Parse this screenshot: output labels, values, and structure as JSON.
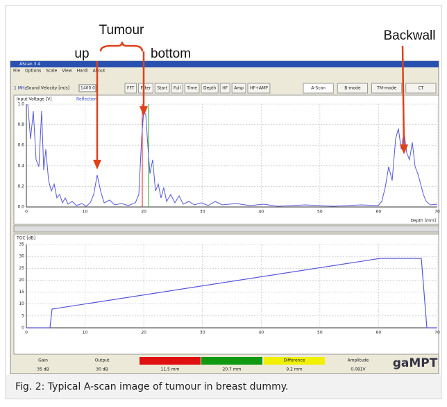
{
  "annotations": {
    "tumour": "Tumour",
    "up": "up",
    "bottom": "bottom",
    "backwall": "Backwall"
  },
  "window": {
    "title": "AScan 3.4",
    "menu": [
      "File",
      "Options",
      "Scale",
      "View",
      "Hardi",
      "About"
    ],
    "frequency": "1 MHz",
    "velocity_label": "Sound Velocity [m/s]",
    "velocity": "1400.0",
    "buttons": [
      "FFT",
      "Filter",
      "Start",
      "Full",
      "Time",
      "Depth",
      "HF",
      "Amp",
      "HF+AMP"
    ],
    "modes": [
      "A-Scan",
      "B-mode",
      "TM-mode",
      "CT"
    ]
  },
  "top_plot": {
    "y_label": "Input Voltage [V]",
    "legend": "Reflection",
    "yticks": [
      "1.0",
      "0.8",
      "0.6",
      "0.4",
      "0.2",
      "0.0"
    ],
    "xticks": [
      "0",
      "10",
      "20",
      "30",
      "40",
      "50",
      "60",
      "70"
    ],
    "x_label": "Depth [mm]"
  },
  "bottom_plot": {
    "y_label": "TGC [dB]",
    "yticks": [
      "35",
      "30",
      "25",
      "20",
      "15",
      "10",
      "5",
      "0"
    ],
    "xticks": [
      "0",
      "10",
      "20",
      "30",
      "40",
      "50",
      "60",
      "70"
    ]
  },
  "status": {
    "gain_label": "Gain",
    "gain": "35 dB",
    "output_label": "Output",
    "output": "30 dB",
    "marker1": "11.5 mm",
    "marker2": "20.7 mm",
    "difference_label": "Difference",
    "difference": "9.2 mm",
    "amplitude_label": "Amplitude",
    "amplitude": "0.081V",
    "logo": "gaMPT"
  },
  "caption": "Fig. 2: Typical A-scan image of tumour in breast dummy."
}
